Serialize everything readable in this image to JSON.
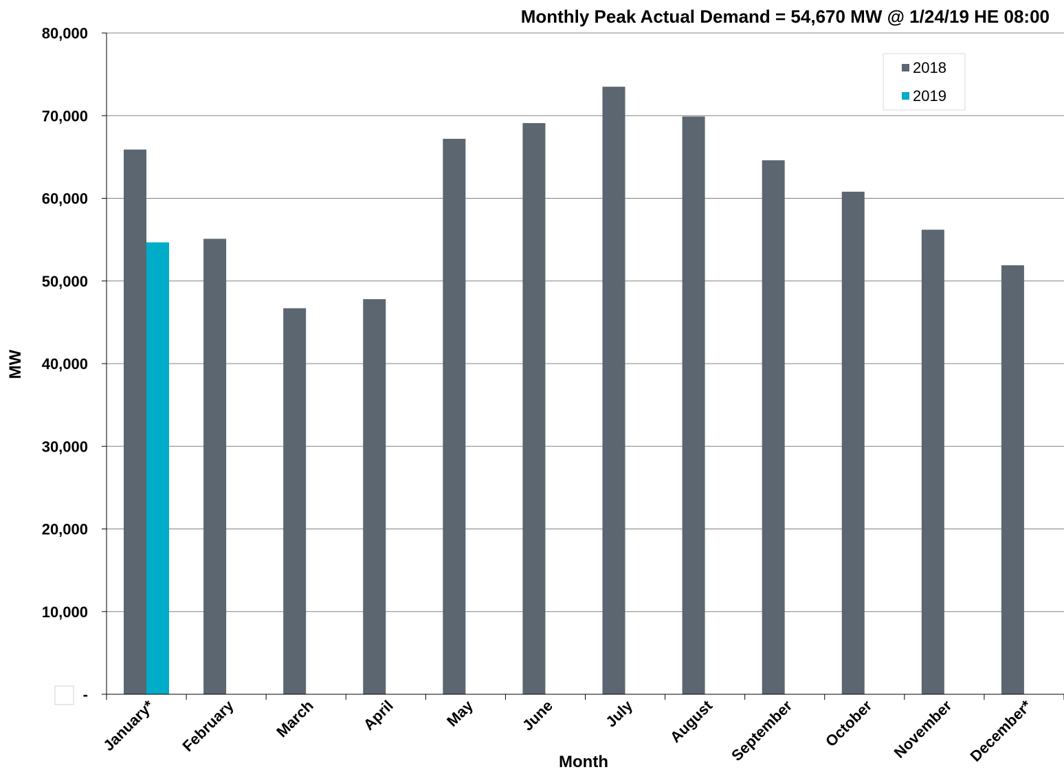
{
  "chart_data": {
    "type": "bar",
    "title": "Monthly Peak Actual Demand = 54,670 MW @ 1/24/19 HE 08:00",
    "xlabel": "Month",
    "ylabel": "MW",
    "ylim": [
      0,
      80000
    ],
    "y_ticks": [
      {
        "value": 0,
        "label": "-"
      },
      {
        "value": 10000,
        "label": "10,000"
      },
      {
        "value": 20000,
        "label": "20,000"
      },
      {
        "value": 30000,
        "label": "30,000"
      },
      {
        "value": 40000,
        "label": "40,000"
      },
      {
        "value": 50000,
        "label": "50,000"
      },
      {
        "value": 60000,
        "label": "60,000"
      },
      {
        "value": 70000,
        "label": "70,000"
      },
      {
        "value": 80000,
        "label": "80,000"
      }
    ],
    "grid": true,
    "legend_position": "top-right",
    "categories": [
      "January*",
      "February",
      "March",
      "April",
      "May",
      "June",
      "July",
      "August",
      "September",
      "October",
      "November",
      "December*"
    ],
    "series": [
      {
        "name": "2018",
        "color": "#5b6670",
        "values": [
          65900,
          55100,
          46700,
          47800,
          67200,
          69100,
          73500,
          69900,
          64600,
          60800,
          56200,
          51900
        ]
      },
      {
        "name": "2019",
        "color": "#00acc8",
        "values": [
          54670,
          null,
          null,
          null,
          null,
          null,
          null,
          null,
          null,
          null,
          null,
          null
        ]
      }
    ]
  }
}
